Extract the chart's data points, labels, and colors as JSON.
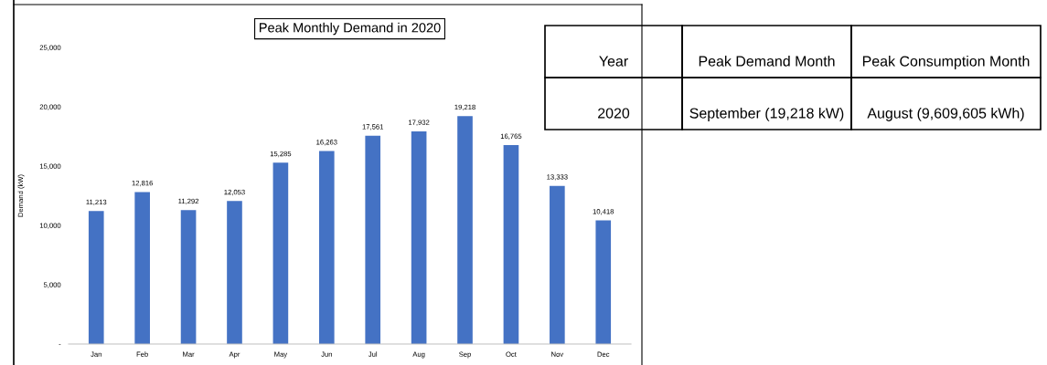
{
  "chart_data": [
    {
      "type": "bar",
      "title": "Peak Monthly Demand in 2020",
      "ylabel": "Demand (kW)",
      "categories": [
        "Jan",
        "Feb",
        "Mar",
        "Apr",
        "May",
        "Jun",
        "Jul",
        "Aug",
        "Sep",
        "Oct",
        "Nov",
        "Dec"
      ],
      "values": [
        11213,
        12816,
        11292,
        12053,
        15285,
        16263,
        17561,
        17932,
        19218,
        16765,
        13333,
        10418
      ],
      "color": "#4472c4",
      "value_labels": [
        "11,213",
        "12,816",
        "11,292",
        "12,053",
        "15,285",
        "16,263",
        "17,561",
        "17,932",
        "19,218",
        "16,765",
        "13,333",
        "10,418"
      ],
      "grid": false,
      "ylim": [
        0,
        25000
      ],
      "yticks": [
        {
          "value": 0,
          "label": "-"
        },
        {
          "value": 5000,
          "label": "5,000"
        },
        {
          "value": 10000,
          "label": "10,000"
        },
        {
          "value": 15000,
          "label": "15,000"
        },
        {
          "value": 20000,
          "label": "20,000"
        },
        {
          "value": 25000,
          "label": "25,000"
        }
      ]
    },
    {
      "type": "other",
      "annotations": [
        "Year",
        "Peak Demand Month",
        "Peak Consumption Month",
        "2020",
        "September (19,218 kW)",
        "August (9,609,605 kWh)"
      ]
    }
  ]
}
